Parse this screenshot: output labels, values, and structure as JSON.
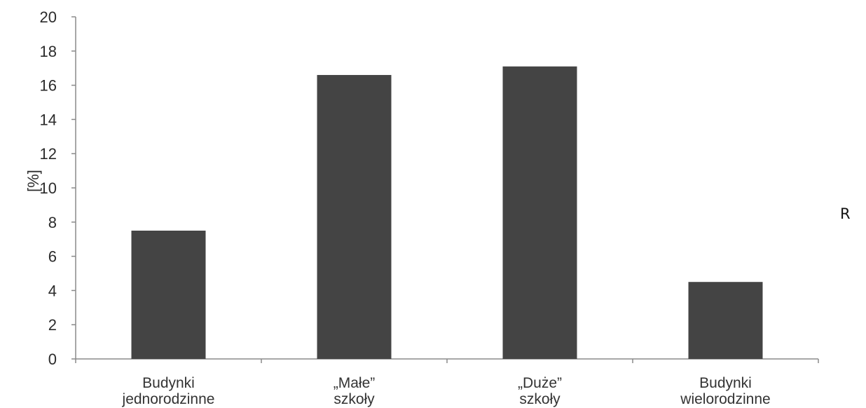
{
  "chart_data": {
    "type": "bar",
    "title": "",
    "xlabel": "",
    "ylabel": "[%]",
    "ylim": [
      0,
      20
    ],
    "yticks": [
      "0",
      "2",
      "4",
      "6",
      "8",
      "10",
      "12",
      "14",
      "16",
      "18",
      "20"
    ],
    "categories": [
      [
        "Budynki",
        "jednorodzinne"
      ],
      [
        "„Małe”",
        "szkoły"
      ],
      [
        "„Duże”",
        "szkoły"
      ],
      [
        "Budynki",
        "wielorodzinne"
      ]
    ],
    "values": [
      7.5,
      16.6,
      17.1,
      4.5
    ],
    "grid": false,
    "legend": "none",
    "bar_color": "#444444",
    "axis_color": "#8a8a8a"
  },
  "side_label": "R"
}
